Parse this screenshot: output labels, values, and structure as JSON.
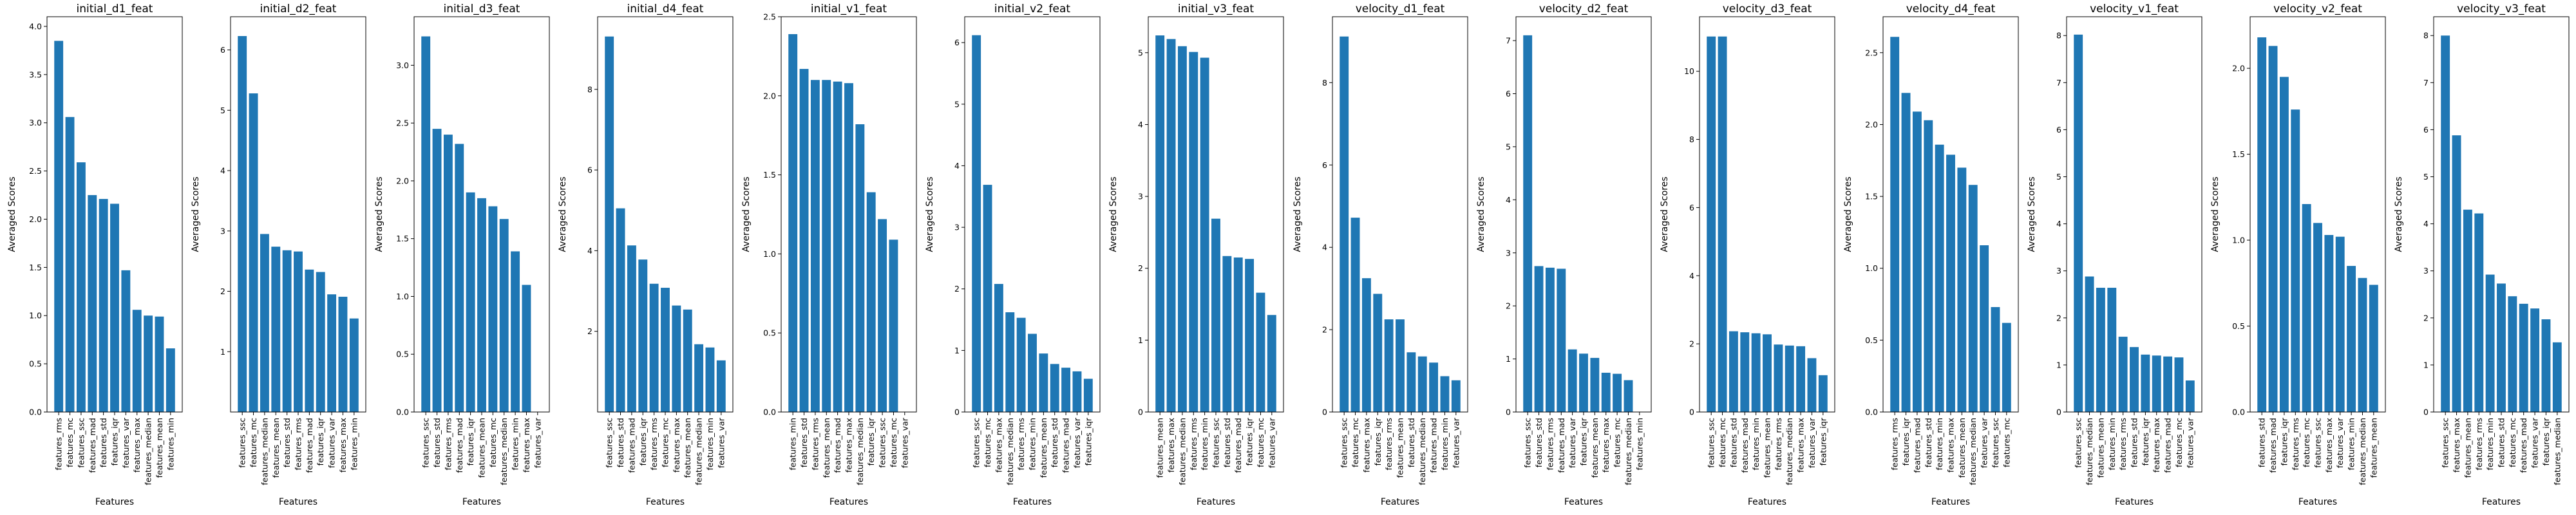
{
  "colors": {
    "bar": "#1f77b4",
    "axis": "#000000"
  },
  "chart_data": [
    {
      "type": "bar",
      "title": "initial_d1_feat",
      "xlabel": "Features",
      "ylabel": "Averaged Scores",
      "ylim": [
        0,
        4.1
      ],
      "yticks": [
        0.0,
        0.5,
        1.0,
        1.5,
        2.0,
        2.5,
        3.0,
        3.5,
        4.0
      ],
      "categories": [
        "features_rms",
        "features_mc",
        "features_ssc",
        "features_mad",
        "features_std",
        "features_iqr",
        "features_var",
        "features_max",
        "features_median",
        "features_mean",
        "features_min"
      ],
      "values": [
        3.85,
        3.06,
        2.59,
        2.25,
        2.21,
        2.16,
        1.47,
        1.06,
        1.0,
        0.99,
        0.66
      ]
    },
    {
      "type": "bar",
      "title": "initial_d2_feat",
      "xlabel": "Features",
      "ylabel": "Averaged Scores",
      "ylim": [
        0,
        6.55
      ],
      "yticks": [
        1,
        2,
        3,
        4,
        5,
        6
      ],
      "categories": [
        "features_ssc",
        "features_mc",
        "features_median",
        "features_mean",
        "features_std",
        "features_rms",
        "features_mad",
        "features_iqr",
        "features_var",
        "features_max",
        "features_min"
      ],
      "values": [
        6.23,
        5.28,
        2.95,
        2.74,
        2.68,
        2.66,
        2.36,
        2.32,
        1.95,
        1.91,
        1.55
      ]
    },
    {
      "type": "bar",
      "title": "initial_d3_feat",
      "xlabel": "Features",
      "ylabel": "Averaged Scores",
      "ylim": [
        0,
        3.42
      ],
      "yticks": [
        0.0,
        0.5,
        1.0,
        1.5,
        2.0,
        2.5,
        3.0
      ],
      "categories": [
        "features_ssc",
        "features_std",
        "features_rms",
        "features_mad",
        "features_iqr",
        "features_mean",
        "features_mc",
        "features_median",
        "features_min",
        "features_max",
        "features_var"
      ],
      "values": [
        3.25,
        2.45,
        2.4,
        2.32,
        1.9,
        1.85,
        1.78,
        1.67,
        1.39,
        1.1,
        0
      ]
    },
    {
      "type": "bar",
      "title": "initial_d4_feat",
      "xlabel": "Features",
      "ylabel": "Averaged Scores",
      "ylim": [
        0,
        9.8
      ],
      "yticks": [
        2,
        4,
        6,
        8
      ],
      "categories": [
        "features_ssc",
        "features_std",
        "features_mad",
        "features_iqr",
        "features_rms",
        "features_mc",
        "features_max",
        "features_mean",
        "features_median",
        "features_min",
        "features_var"
      ],
      "values": [
        9.31,
        5.05,
        4.13,
        3.78,
        3.18,
        3.08,
        2.64,
        2.54,
        1.68,
        1.6,
        1.28
      ]
    },
    {
      "type": "bar",
      "title": "initial_v1_feat",
      "xlabel": "Features",
      "ylabel": "Averaged Scores",
      "ylim": [
        0,
        2.5
      ],
      "yticks": [
        0.0,
        0.5,
        1.0,
        1.5,
        2.0,
        2.5
      ],
      "categories": [
        "features_min",
        "features_std",
        "features_rms",
        "features_mean",
        "features_mad",
        "features_max",
        "features_median",
        "features_iqr",
        "features_ssc",
        "features_mc",
        "features_var"
      ],
      "values": [
        2.39,
        2.17,
        2.1,
        2.1,
        2.09,
        2.08,
        1.82,
        1.39,
        1.22,
        1.09,
        0
      ]
    },
    {
      "type": "bar",
      "title": "initial_v2_feat",
      "xlabel": "Features",
      "ylabel": "Averaged Scores",
      "ylim": [
        0,
        6.42
      ],
      "yticks": [
        0,
        1,
        2,
        3,
        4,
        5,
        6
      ],
      "categories": [
        "features_ssc",
        "features_mc",
        "features_max",
        "features_median",
        "features_rms",
        "features_min",
        "features_mean",
        "features_std",
        "features_mad",
        "features_var",
        "features_iqr"
      ],
      "values": [
        6.12,
        3.69,
        2.08,
        1.62,
        1.53,
        1.27,
        0.95,
        0.78,
        0.72,
        0.66,
        0.54
      ]
    },
    {
      "type": "bar",
      "title": "initial_v3_feat",
      "xlabel": "Features",
      "ylabel": "Averaged Scores",
      "ylim": [
        0,
        5.5
      ],
      "yticks": [
        0,
        1,
        2,
        3,
        4,
        5
      ],
      "categories": [
        "features_mean",
        "features_max",
        "features_median",
        "features_rms",
        "features_min",
        "features_ssc",
        "features_std",
        "features_mad",
        "features_iqr",
        "features_mc",
        "features_var"
      ],
      "values": [
        5.24,
        5.19,
        5.09,
        5.01,
        4.93,
        2.69,
        2.17,
        2.15,
        2.13,
        1.66,
        1.35
      ]
    },
    {
      "type": "bar",
      "title": "velocity_d1_feat",
      "xlabel": "Features",
      "ylabel": "Averaged Scores",
      "ylim": [
        0,
        9.6
      ],
      "yticks": [
        0,
        2,
        4,
        6,
        8
      ],
      "categories": [
        "features_ssc",
        "features_mc",
        "features_max",
        "features_iqr",
        "features_rms",
        "features_mean",
        "features_std",
        "features_median",
        "features_mad",
        "features_min",
        "features_var"
      ],
      "values": [
        9.12,
        4.72,
        3.25,
        2.87,
        2.25,
        2.25,
        1.45,
        1.35,
        1.2,
        0.87,
        0.77
      ]
    },
    {
      "type": "bar",
      "title": "velocity_d2_feat",
      "xlabel": "Features",
      "ylabel": "Averaged Scores",
      "ylim": [
        0,
        7.45
      ],
      "yticks": [
        0,
        1,
        2,
        3,
        4,
        5,
        6,
        7
      ],
      "categories": [
        "features_ssc",
        "features_std",
        "features_rms",
        "features_mad",
        "features_var",
        "features_iqr",
        "features_mean",
        "features_max",
        "features_mc",
        "features_median",
        "features_min"
      ],
      "values": [
        7.1,
        2.75,
        2.72,
        2.7,
        1.18,
        1.1,
        1.02,
        0.74,
        0.72,
        0.6,
        0
      ]
    },
    {
      "type": "bar",
      "title": "velocity_d3_feat",
      "xlabel": "Features",
      "ylabel": "Averaged Scores",
      "ylim": [
        0,
        11.6
      ],
      "yticks": [
        0,
        2,
        4,
        6,
        8,
        10
      ],
      "categories": [
        "features_ssc",
        "features_mc",
        "features_std",
        "features_mad",
        "features_min",
        "features_mean",
        "features_rms",
        "features_median",
        "features_max",
        "features_var",
        "features_iqr"
      ],
      "values": [
        11.02,
        11.02,
        2.37,
        2.34,
        2.31,
        2.28,
        1.98,
        1.95,
        1.93,
        1.58,
        1.08
      ]
    },
    {
      "type": "bar",
      "title": "velocity_d4_feat",
      "xlabel": "Features",
      "ylabel": "Averaged Scores",
      "ylim": [
        0,
        2.75
      ],
      "yticks": [
        0.0,
        0.5,
        1.0,
        1.5,
        2.0,
        2.5
      ],
      "categories": [
        "features_rms",
        "features_iqr",
        "features_mad",
        "features_std",
        "features_min",
        "features_max",
        "features_mean",
        "features_median",
        "features_var",
        "features_ssc",
        "features_mc"
      ],
      "values": [
        2.61,
        2.22,
        2.09,
        2.03,
        1.86,
        1.79,
        1.7,
        1.58,
        1.16,
        0.73,
        0.62
      ]
    },
    {
      "type": "bar",
      "title": "velocity_v1_feat",
      "xlabel": "Features",
      "ylabel": "Averaged Scores",
      "ylim": [
        0,
        8.4
      ],
      "yticks": [
        0,
        1,
        2,
        3,
        4,
        5,
        6,
        7,
        8
      ],
      "categories": [
        "features_ssc",
        "features_median",
        "features_mean",
        "features_min",
        "features_rms",
        "features_std",
        "features_iqr",
        "features_max",
        "features_mad",
        "features_mc",
        "features_var"
      ],
      "values": [
        8.02,
        2.88,
        2.64,
        2.64,
        1.6,
        1.38,
        1.22,
        1.2,
        1.18,
        1.16,
        0.67
      ]
    },
    {
      "type": "bar",
      "title": "velocity_v2_feat",
      "xlabel": "Features",
      "ylabel": "Averaged Scores",
      "ylim": [
        0,
        2.3
      ],
      "yticks": [
        0.0,
        0.5,
        1.0,
        1.5,
        2.0
      ],
      "categories": [
        "features_std",
        "features_mad",
        "features_iqr",
        "features_rms",
        "features_mc",
        "features_ssc",
        "features_max",
        "features_var",
        "features_min",
        "features_median",
        "features_mean"
      ],
      "values": [
        2.18,
        2.13,
        1.95,
        1.76,
        1.21,
        1.1,
        1.03,
        1.02,
        0.85,
        0.78,
        0.74
      ]
    },
    {
      "type": "bar",
      "title": "velocity_v3_feat",
      "xlabel": "Features",
      "ylabel": "Averaged Scores",
      "ylim": [
        0,
        8.4
      ],
      "yticks": [
        0,
        1,
        2,
        3,
        4,
        5,
        6,
        7,
        8
      ],
      "categories": [
        "features_ssc",
        "features_max",
        "features_mean",
        "features_rms",
        "features_min",
        "features_std",
        "features_mc",
        "features_mad",
        "features_var",
        "features_iqr",
        "features_median"
      ],
      "values": [
        8.0,
        5.88,
        4.3,
        4.22,
        2.92,
        2.73,
        2.46,
        2.3,
        2.2,
        1.97,
        1.48
      ]
    }
  ]
}
